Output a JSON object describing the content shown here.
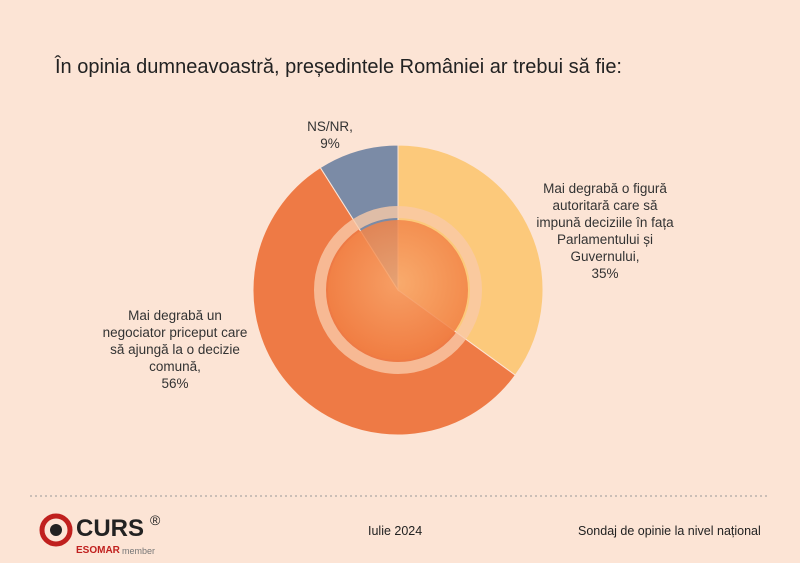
{
  "chart_data": {
    "type": "pie",
    "title": "În opinia dumneavoastră, președintele României  ar trebui să fie:",
    "categories": [
      "Mai degrabă o figură autoritară care să impună deciziile în fața Parlamentului și Guvernului,",
      "Mai degrabă un negociator priceput care să ajungă la o decizie comună,",
      "NS/NR,"
    ],
    "values": [
      35,
      56,
      9
    ],
    "value_labels": [
      "35%",
      "56%",
      "9%"
    ],
    "colors": [
      "#fcc97b",
      "#ee7a45",
      "#7b8ba6"
    ]
  },
  "footer": {
    "logo": "CURS",
    "registered": "®",
    "esomar": "ESOMAR",
    "member": "member",
    "date": "Iulie 2024",
    "source": "Sondaj de opinie la nivel național"
  }
}
